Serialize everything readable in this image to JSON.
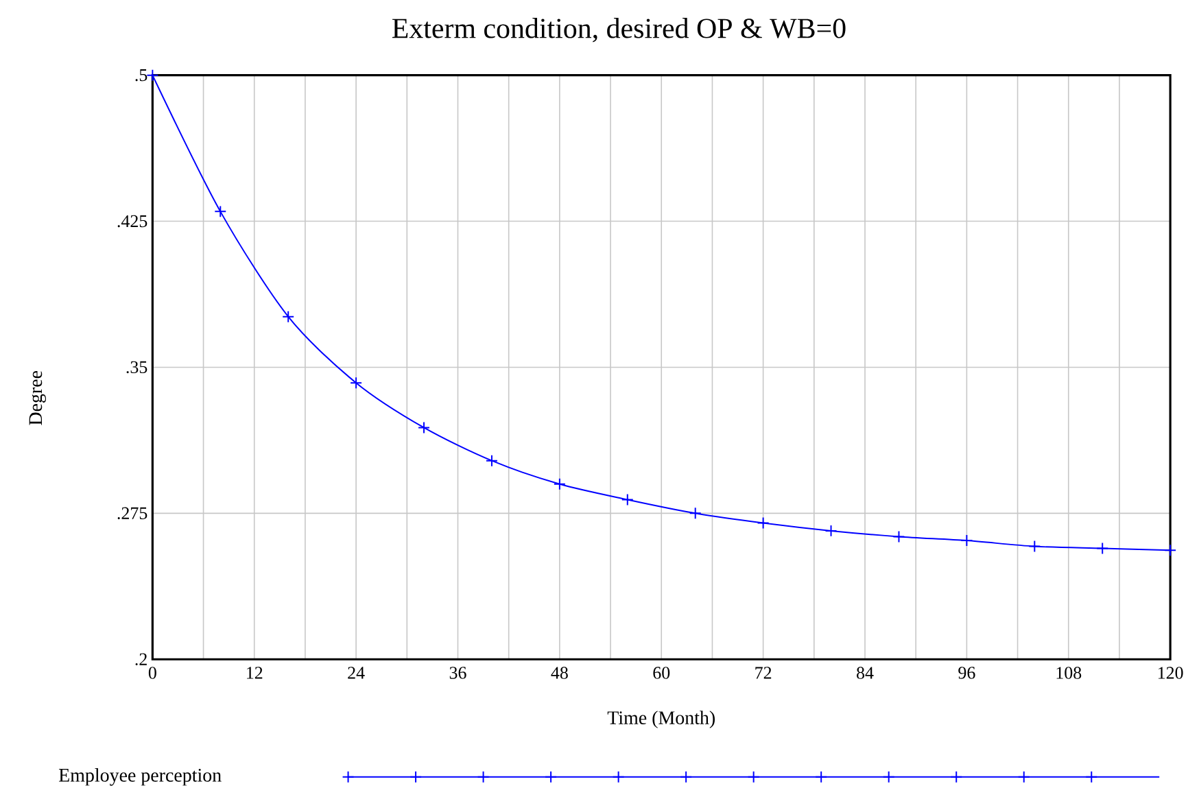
{
  "chart_data": {
    "type": "line",
    "title": "Exterm condition, desired OP & WB=0",
    "xlabel": "Time (Month)",
    "ylabel": "Degree",
    "x": [
      0,
      8,
      16,
      24,
      32,
      40,
      48,
      56,
      64,
      72,
      80,
      88,
      96,
      104,
      112,
      120
    ],
    "series": [
      {
        "name": "Employee perception",
        "color": "#0000ff",
        "values": [
          0.5,
          0.43,
          0.376,
          0.342,
          0.319,
          0.302,
          0.29,
          0.282,
          0.275,
          0.27,
          0.266,
          0.263,
          0.261,
          0.258,
          0.257,
          0.256
        ]
      }
    ],
    "xlim": [
      0,
      120
    ],
    "xticks": [
      0,
      {
        "value": 6,
        "label": null
      },
      12,
      {
        "value": 18,
        "label": null
      },
      24,
      {
        "value": 30,
        "label": null
      },
      36,
      {
        "value": 42,
        "label": null
      },
      48,
      {
        "value": 54,
        "label": null
      },
      60,
      {
        "value": 66,
        "label": null
      },
      72,
      {
        "value": 78,
        "label": null
      },
      84,
      {
        "value": 90,
        "label": null
      },
      96,
      {
        "value": 102,
        "label": null
      },
      108,
      {
        "value": 114,
        "label": null
      },
      120
    ],
    "ylim": [
      0.2,
      0.5
    ],
    "yticks": [
      {
        "value": 0.2,
        "label": ".2"
      },
      {
        "value": 0.275,
        "label": ".275"
      },
      {
        "value": 0.35,
        "label": ".35"
      },
      {
        "value": 0.425,
        "label": ".425"
      },
      {
        "value": 0.5,
        "label": ".5"
      }
    ],
    "grid": true,
    "legend": "bottom",
    "marker": "cross",
    "line_style": "solid"
  }
}
